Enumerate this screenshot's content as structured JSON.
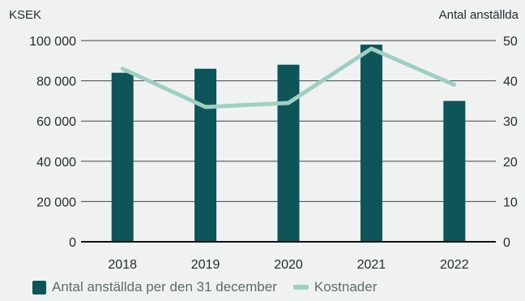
{
  "colors": {
    "bar": "#0d5558",
    "line": "#9fcfc3",
    "grid": "#3d4444",
    "axis": "#111111"
  },
  "chart_data": {
    "type": "bar",
    "categories": [
      "2018",
      "2019",
      "2020",
      "2021",
      "2022"
    ],
    "series": [
      {
        "name": "Antal anställda per den 31 december",
        "type": "bar",
        "axis": "right",
        "values": [
          42,
          43,
          44,
          49,
          35
        ]
      },
      {
        "name": "Kostnader",
        "type": "line",
        "axis": "left",
        "values": [
          86000,
          67000,
          69000,
          96000,
          78000
        ]
      }
    ],
    "left_axis": {
      "unit_label": "KSEK",
      "ylim": [
        0,
        100000
      ],
      "ticks": [
        0,
        20000,
        40000,
        60000,
        80000,
        100000
      ],
      "tick_labels": [
        "0",
        "20 000",
        "40 000",
        "60 000",
        "80 000",
        "100 000"
      ]
    },
    "right_axis": {
      "unit_label": "Antal anställda",
      "ylim": [
        0,
        50
      ],
      "ticks": [
        0,
        10,
        20,
        30,
        40,
        50
      ],
      "tick_labels": [
        "0",
        "10",
        "20",
        "30",
        "40",
        "50"
      ]
    },
    "grid": true,
    "legend_position": "bottom-left"
  }
}
